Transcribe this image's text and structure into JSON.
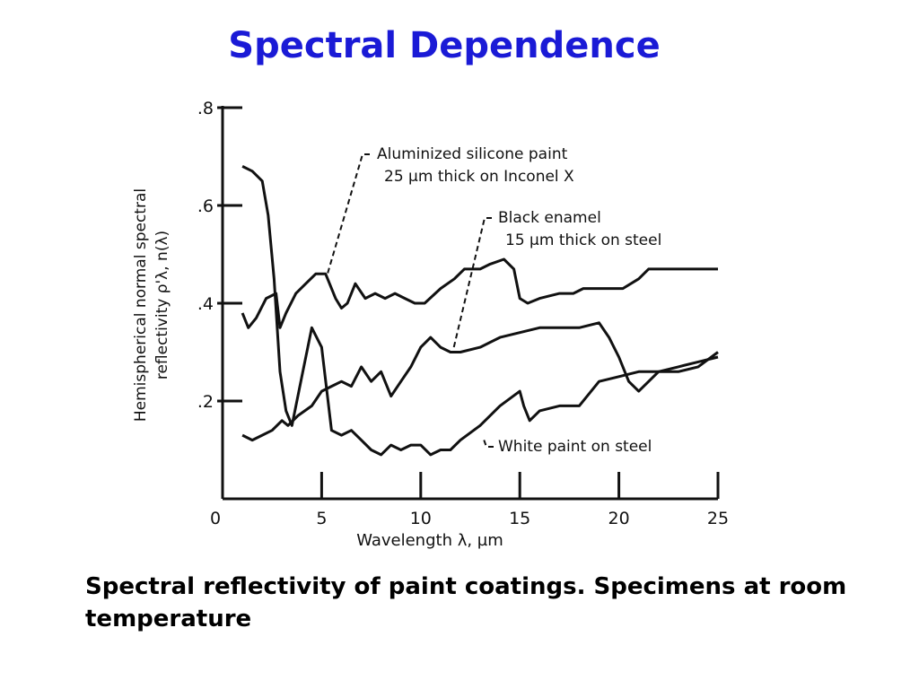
{
  "slide": {
    "title": "Spectral Dependence",
    "caption": "Spectral reflectivity of paint coatings. Specimens at room temperature"
  },
  "colors": {
    "title": "#1a1ad6",
    "ink": "#111111"
  },
  "chart_data": {
    "type": "line",
    "title": "",
    "xlabel": "Wavelength  λ,  µm",
    "ylabel": "Hemispherical normal spectral reflectivity  ρ'λ,n(λ)",
    "ylabel_lines": [
      "Hemispherical normal spectral",
      "reflectivity  ρ'λ, n(λ)"
    ],
    "xlim": [
      0,
      25
    ],
    "ylim": [
      0,
      0.8
    ],
    "x_ticks": [
      0,
      5,
      10,
      15,
      20,
      25
    ],
    "x_tick_labels": [
      "0",
      "5",
      "10",
      "15",
      "20",
      "25"
    ],
    "y_ticks": [
      0.2,
      0.4,
      0.6,
      0.8
    ],
    "y_tick_labels": [
      ".2",
      ".4",
      ".6",
      ".8"
    ],
    "grid": false,
    "legend": "none (direct curve annotations)",
    "series": [
      {
        "name": "Aluminized silicone paint 25 µm thick on Inconel X",
        "label_lines": [
          "Aluminized silicone paint",
          "25 µm  thick  on Inconel X"
        ],
        "x": [
          1.0,
          1.3,
          1.7,
          2.2,
          2.7,
          2.9,
          3.2,
          3.7,
          4.2,
          4.7,
          5.2,
          5.7,
          6.0,
          6.3,
          6.7,
          7.2,
          7.7,
          8.2,
          8.7,
          9.2,
          9.7,
          10.2,
          11.0,
          11.7,
          12.2,
          13.0,
          13.5,
          14.2,
          14.7,
          15.0,
          15.4,
          16.0,
          17.0,
          17.7,
          18.2,
          19.0,
          19.7,
          20.2,
          21.0,
          21.5,
          22.5,
          23.5,
          24.5,
          25.0
        ],
        "y": [
          0.38,
          0.35,
          0.37,
          0.41,
          0.42,
          0.35,
          0.38,
          0.42,
          0.44,
          0.46,
          0.46,
          0.41,
          0.39,
          0.4,
          0.44,
          0.41,
          0.42,
          0.41,
          0.42,
          0.41,
          0.4,
          0.4,
          0.43,
          0.45,
          0.47,
          0.47,
          0.48,
          0.49,
          0.47,
          0.41,
          0.4,
          0.41,
          0.42,
          0.42,
          0.43,
          0.43,
          0.43,
          0.43,
          0.45,
          0.47,
          0.47,
          0.47,
          0.47,
          0.47
        ]
      },
      {
        "name": "Black enamel 15 µm thick on steel",
        "label_lines": [
          "Black enamel",
          "15 µm  thick  on steel"
        ],
        "x": [
          1.0,
          1.5,
          2.0,
          2.5,
          3.0,
          3.3,
          3.8,
          4.5,
          5.0,
          5.5,
          6.0,
          6.5,
          7.0,
          7.5,
          8.0,
          8.5,
          9.0,
          9.5,
          10.0,
          10.5,
          11.0,
          11.5,
          12.0,
          13.0,
          14.0,
          15.0,
          16.0,
          17.0,
          18.0,
          19.0,
          19.5,
          20.0,
          20.5,
          21.0,
          22.0,
          23.0,
          24.0,
          25.0
        ],
        "y": [
          0.13,
          0.12,
          0.13,
          0.14,
          0.16,
          0.15,
          0.17,
          0.19,
          0.22,
          0.23,
          0.24,
          0.23,
          0.27,
          0.24,
          0.26,
          0.21,
          0.24,
          0.27,
          0.31,
          0.33,
          0.31,
          0.3,
          0.3,
          0.31,
          0.33,
          0.34,
          0.35,
          0.35,
          0.35,
          0.36,
          0.33,
          0.29,
          0.24,
          0.22,
          0.26,
          0.27,
          0.28,
          0.29
        ]
      },
      {
        "name": "White paint on steel",
        "label_lines": [
          "White paint on steel"
        ],
        "x": [
          1.0,
          1.5,
          2.0,
          2.3,
          2.6,
          2.9,
          3.2,
          3.5,
          4.0,
          4.5,
          5.0,
          5.5,
          6.0,
          6.5,
          7.0,
          7.5,
          8.0,
          8.5,
          9.0,
          9.5,
          10.0,
          10.5,
          11.0,
          11.5,
          12.0,
          13.0,
          14.0,
          15.0,
          15.2,
          15.5,
          16.0,
          17.0,
          18.0,
          19.0,
          20.0,
          21.0,
          22.0,
          23.0,
          24.0,
          25.0
        ],
        "y": [
          0.68,
          0.67,
          0.65,
          0.58,
          0.45,
          0.26,
          0.18,
          0.15,
          0.25,
          0.35,
          0.31,
          0.14,
          0.13,
          0.14,
          0.12,
          0.1,
          0.09,
          0.11,
          0.1,
          0.11,
          0.11,
          0.09,
          0.1,
          0.1,
          0.12,
          0.15,
          0.19,
          0.22,
          0.19,
          0.16,
          0.18,
          0.19,
          0.19,
          0.24,
          0.25,
          0.26,
          0.26,
          0.26,
          0.27,
          0.3
        ]
      }
    ]
  }
}
